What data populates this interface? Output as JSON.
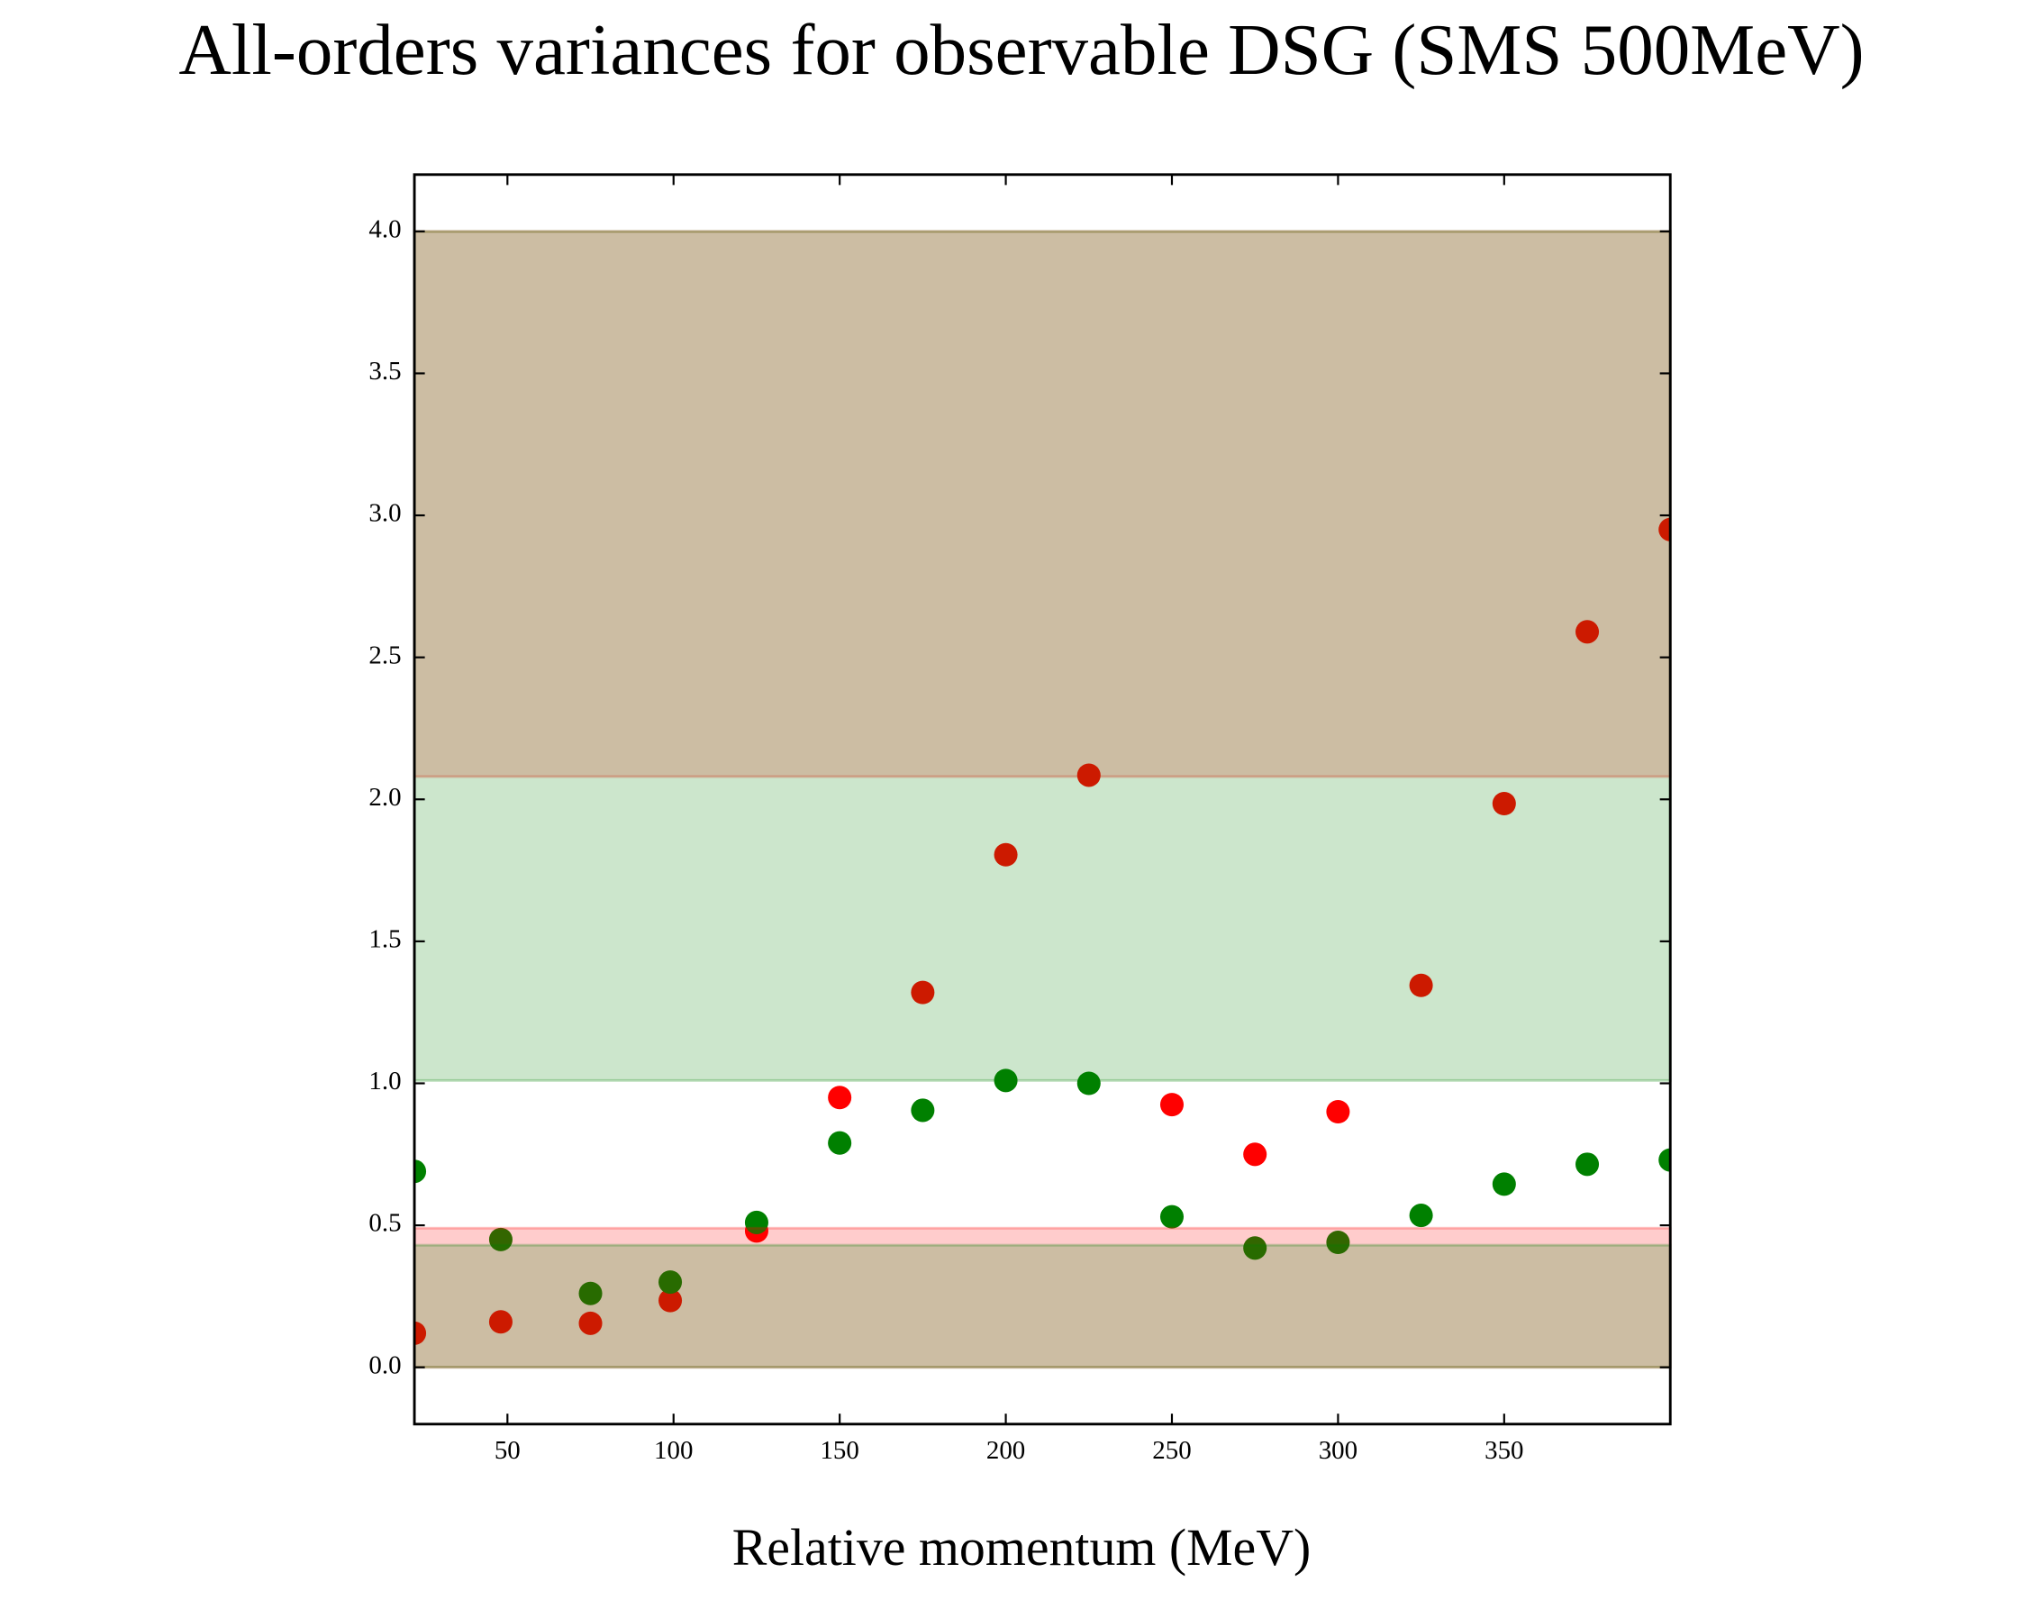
{
  "chart_data": {
    "type": "scatter",
    "title": "All-orders variances for observable DSG (SMS 500MeV)",
    "x_label": "Relative momentum (MeV)",
    "x": [
      22,
      48,
      75,
      99,
      125,
      150,
      175,
      200,
      225,
      250,
      275,
      300,
      325,
      350,
      375,
      400
    ],
    "series": [
      {
        "color": "#ff0000",
        "values": [
          0.12,
          0.16,
          0.155,
          0.235,
          0.48,
          0.95,
          1.32,
          1.805,
          2.085,
          0.925,
          0.75,
          0.9,
          1.345,
          1.985,
          2.59,
          2.95
        ]
      },
      {
        "color": "#008000",
        "values": [
          0.69,
          0.45,
          0.26,
          0.3,
          0.51,
          0.79,
          0.905,
          1.01,
          1.0,
          0.53,
          0.42,
          0.44,
          0.535,
          0.645,
          0.715,
          0.73
        ]
      }
    ],
    "bands": [
      {
        "color": "#ff0000",
        "ranges": [
          [
            0,
            0.49
          ],
          [
            2.08,
            4.0
          ]
        ]
      },
      {
        "color": "#008000",
        "ranges": [
          [
            0,
            0.43
          ],
          [
            1.01,
            4.0
          ]
        ]
      }
    ],
    "xlim": [
      22,
      400
    ],
    "ylim": [
      -0.2,
      4.2
    ],
    "xticks": [
      50,
      100,
      150,
      200,
      250,
      300,
      350
    ],
    "yticks": [
      {
        "value": 0,
        "label": "0.0"
      },
      {
        "value": 0.5,
        "label": "0.5"
      },
      {
        "value": 1,
        "label": "1.0"
      },
      {
        "value": 1.5,
        "label": "1.5"
      },
      {
        "value": 2,
        "label": "2.0"
      },
      {
        "value": 2.5,
        "label": "2.5"
      },
      {
        "value": 3,
        "label": "3.0"
      },
      {
        "value": 3.5,
        "label": "3.5"
      },
      {
        "value": 4,
        "label": "4.0"
      }
    ]
  }
}
